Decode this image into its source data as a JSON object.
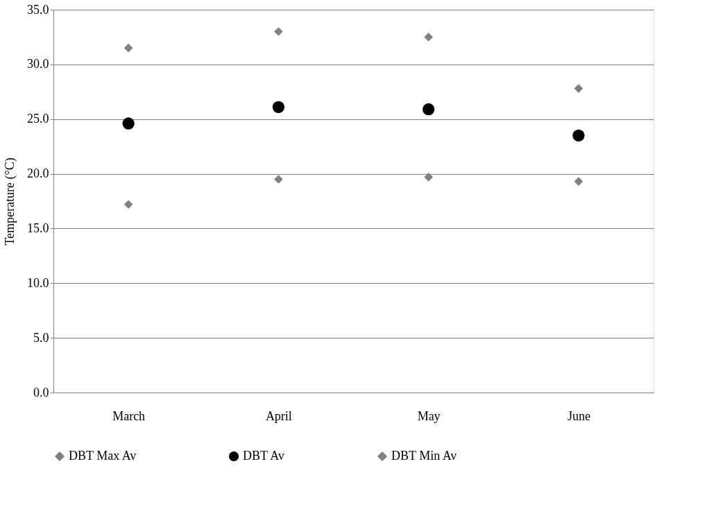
{
  "chart_data": {
    "type": "scatter",
    "ylabel": "Temperature (°C)",
    "categories": [
      "March",
      "April",
      "May",
      "June"
    ],
    "series": [
      {
        "name": "DBT Max Av",
        "color": "#808080",
        "marker": "diamond",
        "values": [
          31.5,
          33.0,
          32.5,
          27.8
        ]
      },
      {
        "name": "DBT Av",
        "color": "#000000",
        "marker": "circle",
        "values": [
          24.6,
          26.1,
          25.9,
          23.5
        ]
      },
      {
        "name": "DBT Min Av",
        "color": "#808080",
        "marker": "diamond",
        "values": [
          17.2,
          19.5,
          19.7,
          19.3
        ]
      }
    ],
    "ylim": [
      0,
      35
    ],
    "yticks": [
      {
        "value": 0,
        "label": "0.0"
      },
      {
        "value": 5,
        "label": "5.0"
      },
      {
        "value": 10,
        "label": "10.0"
      },
      {
        "value": 15,
        "label": "15.0"
      },
      {
        "value": 20,
        "label": "20.0"
      },
      {
        "value": 25,
        "label": "25.0"
      },
      {
        "value": 30,
        "label": "30.0"
      },
      {
        "value": 35,
        "label": "35.0"
      }
    ],
    "grid": "y",
    "legend": "bottom"
  }
}
